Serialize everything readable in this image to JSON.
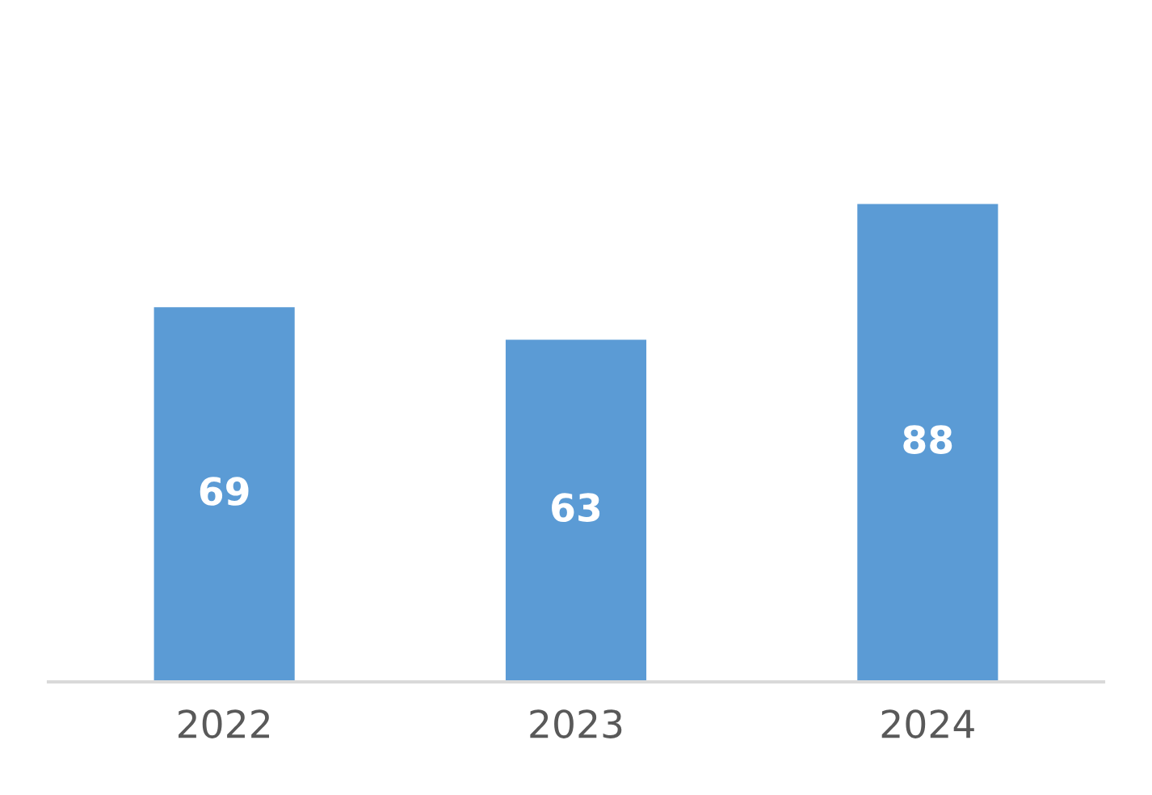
{
  "chart_data": {
    "type": "bar",
    "categories": [
      "2022",
      "2023",
      "2024"
    ],
    "values": [
      69,
      63,
      88
    ],
    "color": "#5b9bd5",
    "data_labels": true,
    "grid": false,
    "legend": false,
    "tick_labels": "x"
  }
}
